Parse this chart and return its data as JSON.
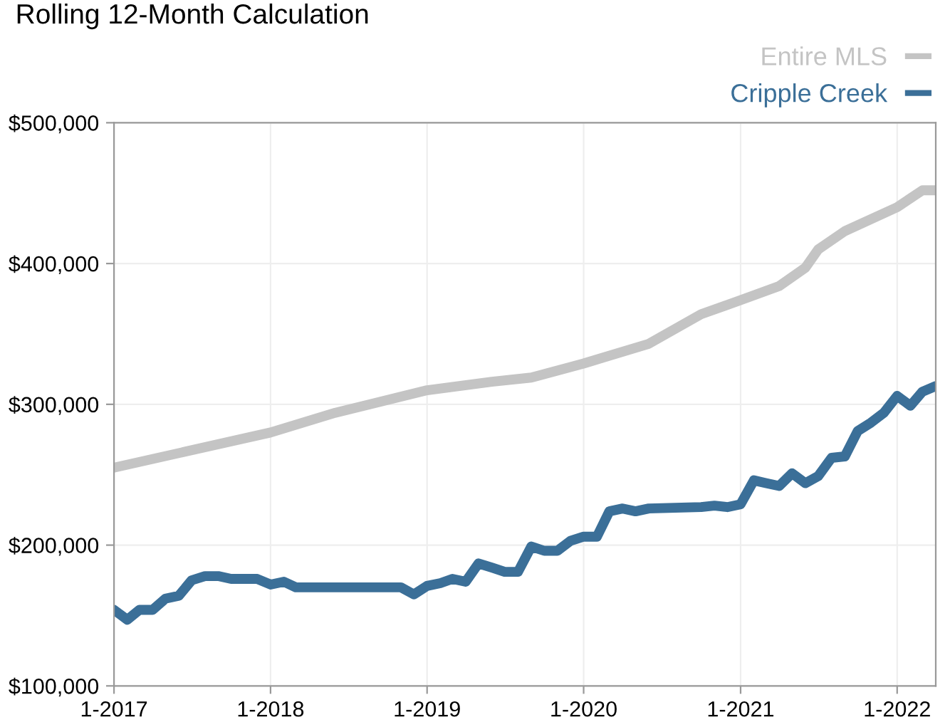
{
  "chart_data": {
    "type": "line",
    "title": "Rolling 12-Month Calculation",
    "xlim": [
      "2017-01",
      "2022-04"
    ],
    "ylim": [
      100000,
      500000
    ],
    "yticks": [
      {
        "value": 100000,
        "label": "$100,000"
      },
      {
        "value": 200000,
        "label": "$200,000"
      },
      {
        "value": 300000,
        "label": "$300,000"
      },
      {
        "value": 400000,
        "label": "$400,000"
      },
      {
        "value": 500000,
        "label": "$500,000"
      }
    ],
    "xticks": [
      {
        "value": "2017-01",
        "label": "1-2017"
      },
      {
        "value": "2018-01",
        "label": "1-2018"
      },
      {
        "value": "2019-01",
        "label": "1-2019"
      },
      {
        "value": "2020-01",
        "label": "1-2020"
      },
      {
        "value": "2021-01",
        "label": "1-2021"
      },
      {
        "value": "2022-01",
        "label": "1-2022"
      }
    ],
    "grid": true,
    "legend": "top right",
    "line_style": "solid",
    "marker": "none",
    "series": [
      {
        "name": "Entire MLS",
        "color": "#c4c4c4",
        "x": [
          "2017-01",
          "2018-01",
          "2018-06",
          "2019-01",
          "2019-06",
          "2019-09",
          "2020-01",
          "2020-06",
          "2020-10",
          "2021-01",
          "2021-04",
          "2021-06",
          "2021-07",
          "2021-09",
          "2022-01",
          "2022-03",
          "2022-04"
        ],
        "values": [
          255000,
          280000,
          294000,
          310000,
          316000,
          319000,
          329000,
          343000,
          364000,
          374000,
          384000,
          397000,
          410000,
          423000,
          440000,
          452000,
          452000
        ]
      },
      {
        "name": "Cripple Creek",
        "color": "#3b6f98",
        "x": [
          "2017-01",
          "2017-02",
          "2017-03",
          "2017-04",
          "2017-05",
          "2017-06",
          "2017-07",
          "2017-08",
          "2017-09",
          "2017-10",
          "2017-11",
          "2017-12",
          "2018-01",
          "2018-02",
          "2018-03",
          "2018-11",
          "2018-12",
          "2019-01",
          "2019-02",
          "2019-03",
          "2019-04",
          "2019-05",
          "2019-06",
          "2019-07",
          "2019-08",
          "2019-09",
          "2019-10",
          "2019-11",
          "2019-12",
          "2020-01",
          "2020-02",
          "2020-03",
          "2020-04",
          "2020-05",
          "2020-06",
          "2020-10",
          "2020-11",
          "2020-12",
          "2021-01",
          "2021-02",
          "2021-03",
          "2021-04",
          "2021-05",
          "2021-06",
          "2021-07",
          "2021-08",
          "2021-09",
          "2021-10",
          "2021-11",
          "2021-12",
          "2022-01",
          "2022-02",
          "2022-03",
          "2022-04"
        ],
        "values": [
          154000,
          147000,
          154000,
          154000,
          162000,
          164000,
          175000,
          178000,
          178000,
          176000,
          176000,
          176000,
          172000,
          174000,
          170000,
          170000,
          165000,
          171000,
          173000,
          176000,
          174000,
          187000,
          184000,
          181000,
          181000,
          199000,
          196000,
          196000,
          203000,
          206000,
          206000,
          224000,
          226000,
          224000,
          226000,
          227000,
          228000,
          227000,
          229000,
          246000,
          244000,
          242000,
          251000,
          244000,
          249000,
          262000,
          263000,
          281000,
          287000,
          294000,
          306000,
          299000,
          309000,
          313000
        ]
      }
    ]
  }
}
